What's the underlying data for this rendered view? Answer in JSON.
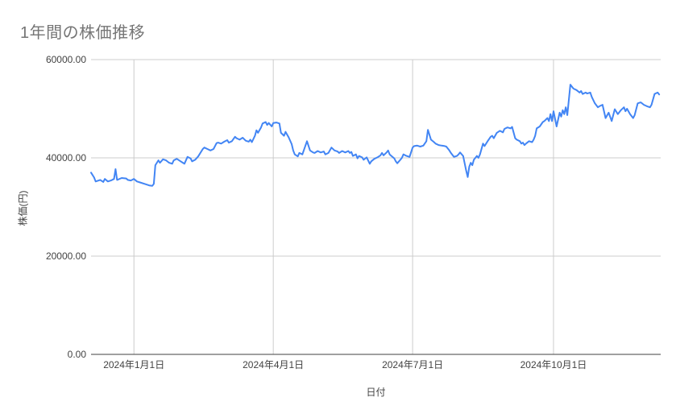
{
  "page": {
    "background": "#ffffff"
  },
  "chart_data": {
    "type": "line",
    "title": "1年間の株価推移",
    "xlabel": "日付",
    "ylabel": "株価(円)",
    "legend": "none",
    "grid": true,
    "ylim": [
      0,
      60000
    ],
    "y_ticks": [
      0,
      20000,
      40000,
      60000
    ],
    "y_tick_labels": [
      "0.00",
      "20000.00",
      "40000.00",
      "60000.00"
    ],
    "x_tick_labels": [
      "2024年1月1日",
      "2024年4月1日",
      "2024年7月1日",
      "2024年10月1日"
    ],
    "x_tick_days": [
      28,
      119,
      210,
      302
    ],
    "x_start_date": "2023-12-04",
    "x_unit": "days_since_start",
    "x_range_days": [
      0,
      372
    ],
    "colors": {
      "line": "#4285f4",
      "grid": "#cccccc",
      "axis": "#424242",
      "title": "#757575",
      "tick_label": "#424242"
    },
    "series": [
      {
        "points": [
          [
            0,
            37000
          ],
          [
            2,
            36000
          ],
          [
            3,
            35200
          ],
          [
            6,
            35500
          ],
          [
            8,
            35100
          ],
          [
            9,
            35700
          ],
          [
            11,
            35200
          ],
          [
            13,
            35400
          ],
          [
            15,
            35700
          ],
          [
            16,
            37700
          ],
          [
            17,
            35500
          ],
          [
            20,
            35900
          ],
          [
            23,
            35800
          ],
          [
            24,
            35500
          ],
          [
            26,
            35400
          ],
          [
            28,
            35700
          ],
          [
            30,
            35200
          ],
          [
            32,
            35000
          ],
          [
            36,
            34600
          ],
          [
            38,
            34400
          ],
          [
            40,
            34300
          ],
          [
            41,
            34700
          ],
          [
            42,
            38500
          ],
          [
            44,
            39500
          ],
          [
            45,
            39000
          ],
          [
            47,
            39700
          ],
          [
            49,
            39500
          ],
          [
            51,
            39000
          ],
          [
            53,
            38800
          ],
          [
            54,
            39500
          ],
          [
            56,
            39800
          ],
          [
            58,
            39400
          ],
          [
            60,
            39000
          ],
          [
            61,
            38800
          ],
          [
            63,
            40200
          ],
          [
            65,
            39900
          ],
          [
            66,
            39300
          ],
          [
            68,
            39600
          ],
          [
            70,
            40300
          ],
          [
            73,
            41800
          ],
          [
            74,
            42100
          ],
          [
            76,
            41800
          ],
          [
            78,
            41500
          ],
          [
            80,
            41800
          ],
          [
            82,
            43000
          ],
          [
            83,
            43100
          ],
          [
            85,
            42900
          ],
          [
            87,
            43300
          ],
          [
            89,
            43600
          ],
          [
            90,
            43100
          ],
          [
            92,
            43400
          ],
          [
            94,
            44300
          ],
          [
            95,
            44000
          ],
          [
            97,
            43700
          ],
          [
            99,
            44100
          ],
          [
            101,
            43500
          ],
          [
            103,
            43300
          ],
          [
            104,
            43700
          ],
          [
            105,
            43200
          ],
          [
            107,
            44500
          ],
          [
            108,
            45600
          ],
          [
            109,
            45100
          ],
          [
            111,
            46200
          ],
          [
            112,
            47000
          ],
          [
            114,
            47300
          ],
          [
            115,
            46700
          ],
          [
            116,
            47100
          ],
          [
            118,
            46400
          ],
          [
            119,
            47100
          ],
          [
            121,
            47200
          ],
          [
            123,
            47000
          ],
          [
            124,
            45100
          ],
          [
            126,
            44500
          ],
          [
            127,
            45300
          ],
          [
            129,
            44200
          ],
          [
            131,
            42800
          ],
          [
            132,
            41500
          ],
          [
            133,
            40700
          ],
          [
            135,
            40300
          ],
          [
            136,
            41000
          ],
          [
            138,
            40700
          ],
          [
            141,
            43400
          ],
          [
            143,
            41500
          ],
          [
            145,
            41100
          ],
          [
            146,
            41000
          ],
          [
            148,
            41400
          ],
          [
            150,
            41100
          ],
          [
            152,
            41300
          ],
          [
            153,
            40700
          ],
          [
            155,
            41000
          ],
          [
            157,
            42100
          ],
          [
            159,
            41500
          ],
          [
            161,
            41300
          ],
          [
            162,
            41000
          ],
          [
            164,
            41400
          ],
          [
            166,
            41100
          ],
          [
            168,
            41400
          ],
          [
            169,
            41000
          ],
          [
            170,
            41200
          ],
          [
            171,
            40400
          ],
          [
            173,
            40700
          ],
          [
            174,
            39900
          ],
          [
            175,
            40400
          ],
          [
            177,
            40100
          ],
          [
            178,
            39600
          ],
          [
            180,
            40100
          ],
          [
            182,
            38800
          ],
          [
            183,
            39300
          ],
          [
            185,
            39800
          ],
          [
            187,
            40100
          ],
          [
            189,
            40500
          ],
          [
            190,
            41000
          ],
          [
            191,
            40500
          ],
          [
            193,
            41100
          ],
          [
            194,
            41500
          ],
          [
            195,
            40700
          ],
          [
            198,
            39900
          ],
          [
            199,
            39300
          ],
          [
            200,
            38900
          ],
          [
            202,
            39600
          ],
          [
            203,
            40000
          ],
          [
            204,
            40700
          ],
          [
            206,
            40400
          ],
          [
            208,
            40200
          ],
          [
            210,
            42100
          ],
          [
            211,
            42400
          ],
          [
            213,
            42500
          ],
          [
            215,
            42300
          ],
          [
            217,
            42500
          ],
          [
            219,
            43400
          ],
          [
            220,
            45700
          ],
          [
            222,
            43700
          ],
          [
            224,
            43200
          ],
          [
            225,
            42900
          ],
          [
            227,
            42600
          ],
          [
            229,
            42500
          ],
          [
            231,
            42400
          ],
          [
            232,
            42300
          ],
          [
            234,
            41500
          ],
          [
            235,
            41000
          ],
          [
            237,
            40200
          ],
          [
            239,
            40400
          ],
          [
            240,
            40700
          ],
          [
            241,
            41100
          ],
          [
            243,
            40400
          ],
          [
            245,
            37400
          ],
          [
            246,
            36100
          ],
          [
            247,
            38200
          ],
          [
            248,
            39000
          ],
          [
            249,
            38500
          ],
          [
            250,
            39600
          ],
          [
            252,
            40400
          ],
          [
            253,
            40000
          ],
          [
            254,
            40700
          ],
          [
            256,
            42900
          ],
          [
            257,
            42400
          ],
          [
            259,
            43400
          ],
          [
            261,
            44300
          ],
          [
            262,
            44500
          ],
          [
            263,
            44000
          ],
          [
            265,
            45100
          ],
          [
            267,
            45500
          ],
          [
            269,
            45200
          ],
          [
            270,
            45900
          ],
          [
            272,
            46200
          ],
          [
            274,
            46000
          ],
          [
            275,
            46300
          ],
          [
            277,
            44000
          ],
          [
            278,
            43700
          ],
          [
            280,
            43400
          ],
          [
            281,
            42900
          ],
          [
            282,
            43100
          ],
          [
            283,
            42600
          ],
          [
            284,
            42900
          ],
          [
            286,
            43400
          ],
          [
            288,
            43200
          ],
          [
            289,
            43700
          ],
          [
            290,
            44500
          ],
          [
            291,
            46000
          ],
          [
            293,
            46400
          ],
          [
            295,
            47300
          ],
          [
            296,
            47500
          ],
          [
            298,
            48100
          ],
          [
            299,
            47500
          ],
          [
            300,
            48900
          ],
          [
            301,
            47500
          ],
          [
            302,
            49500
          ],
          [
            304,
            46400
          ],
          [
            306,
            49200
          ],
          [
            307,
            48400
          ],
          [
            308,
            49700
          ],
          [
            309,
            48900
          ],
          [
            310,
            50300
          ],
          [
            311,
            48700
          ],
          [
            313,
            54900
          ],
          [
            315,
            54100
          ],
          [
            317,
            53800
          ],
          [
            319,
            53300
          ],
          [
            320,
            53600
          ],
          [
            321,
            53000
          ],
          [
            323,
            53300
          ],
          [
            324,
            53100
          ],
          [
            326,
            53300
          ],
          [
            327,
            52400
          ],
          [
            329,
            51100
          ],
          [
            331,
            50300
          ],
          [
            332,
            50500
          ],
          [
            334,
            50800
          ],
          [
            336,
            48100
          ],
          [
            338,
            49200
          ],
          [
            340,
            47500
          ],
          [
            342,
            49900
          ],
          [
            344,
            48900
          ],
          [
            346,
            49700
          ],
          [
            348,
            50300
          ],
          [
            349,
            49500
          ],
          [
            350,
            50000
          ],
          [
            352,
            48900
          ],
          [
            354,
            48100
          ],
          [
            355,
            48700
          ],
          [
            357,
            51100
          ],
          [
            359,
            51300
          ],
          [
            361,
            50800
          ],
          [
            363,
            50500
          ],
          [
            365,
            50300
          ],
          [
            366,
            50800
          ],
          [
            368,
            53000
          ],
          [
            370,
            53300
          ],
          [
            371,
            52900
          ]
        ]
      }
    ]
  }
}
